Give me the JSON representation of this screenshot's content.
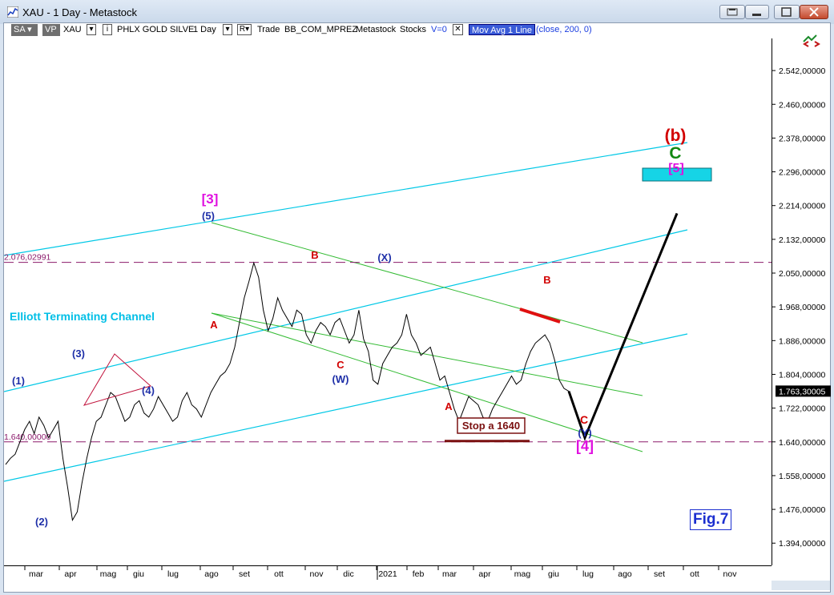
{
  "window": {
    "title": "XAU - 1 Day - Metastock"
  },
  "toolbar": {
    "sa": "SA",
    "vp": "VP",
    "symbol": "XAU",
    "name": "PHLX GOLD SILVE",
    "period": "1 Day",
    "r": "R",
    "trade": "Trade",
    "strategy": "BB_COM_MPREZ",
    "source": "Metastock",
    "stocks": "Stocks",
    "v": "V=0",
    "indicator": "Mov Avg 1 Line",
    "params": "(close,  200,  0)"
  },
  "colors": {
    "price": "#000000",
    "channel": "#00c8e6",
    "green_channel": "#33bb33",
    "wave_blue": "#1e2fa8",
    "wave_red": "#d20000",
    "wave_magenta": "#e010e0",
    "wave_green": "#118811",
    "hline": "#8b1a6b"
  },
  "chart_data": {
    "type": "line",
    "ylim": [
      1340,
      2620
    ],
    "yticks": [
      1394,
      1476,
      1558,
      1640,
      1722,
      1804,
      1886,
      1968,
      2050,
      2132,
      2214,
      2296,
      2378,
      2460,
      2542
    ],
    "ytick_labels": [
      "1.394,00000",
      "1.476,00000",
      "1.558,00000",
      "1.640,00000",
      "1.722,00000",
      "1.804,00000",
      "1.886,00000",
      "1.968,00000",
      "2.050,00000",
      "2.132,00000",
      "2.214,00000",
      "2.296,00000",
      "2.378,00000",
      "2.460,00000",
      "2.542,00000"
    ],
    "last_price_label": "1.763,30005",
    "xticks": [
      "mar",
      "apr",
      "mag",
      "giu",
      "lug",
      "ago",
      "set",
      "ott",
      "nov",
      "dic",
      "2021",
      "feb",
      "mar",
      "apr",
      "mag",
      "giu",
      "lug",
      "ago",
      "set",
      "ott",
      "nov"
    ],
    "series": [
      {
        "values": [
          1585,
          1600,
          1610,
          1640,
          1670,
          1690,
          1660,
          1700,
          1680,
          1650,
          1670,
          1690,
          1600,
          1530,
          1450,
          1470,
          1540,
          1600,
          1650,
          1690,
          1700,
          1730,
          1760,
          1750,
          1720,
          1690,
          1700,
          1730,
          1740,
          1710,
          1700,
          1720,
          1750,
          1730,
          1710,
          1690,
          1700,
          1740,
          1760,
          1730,
          1720,
          1700,
          1730,
          1760,
          1780,
          1800,
          1810,
          1830,
          1870,
          1930,
          1990,
          2030,
          2075,
          2040,
          1960,
          1910,
          1940,
          1990,
          1960,
          1940,
          1920,
          1960,
          1950,
          1900,
          1880,
          1910,
          1930,
          1920,
          1900,
          1930,
          1940,
          1910,
          1880,
          1900,
          1960,
          1890,
          1860,
          1790,
          1780,
          1830,
          1850,
          1870,
          1880,
          1900,
          1950,
          1900,
          1880,
          1850,
          1860,
          1870,
          1830,
          1790,
          1800,
          1760,
          1720,
          1690,
          1720,
          1750,
          1740,
          1730,
          1700,
          1690,
          1720,
          1740,
          1760,
          1780,
          1800,
          1780,
          1790,
          1830,
          1860,
          1880,
          1890,
          1900,
          1880,
          1840,
          1790,
          1770,
          1763
        ]
      }
    ],
    "projection": [
      1763,
      1650,
      2195
    ],
    "annotations": [
      {
        "text": "(1)",
        "color": "blue"
      },
      {
        "text": "(2)",
        "color": "blue"
      },
      {
        "text": "(3)",
        "color": "blue"
      },
      {
        "text": "(4)",
        "color": "blue"
      },
      {
        "text": "[3]",
        "color": "magenta"
      },
      {
        "text": "(5)",
        "color": "blue"
      },
      {
        "text": "A",
        "color": "red"
      },
      {
        "text": "B",
        "color": "red"
      },
      {
        "text": "C",
        "color": "red"
      },
      {
        "text": "(W)",
        "color": "blue"
      },
      {
        "text": "(X)",
        "color": "blue"
      },
      {
        "text": "A",
        "color": "red"
      },
      {
        "text": "B",
        "color": "red"
      },
      {
        "text": "C",
        "color": "red"
      },
      {
        "text": "(Y)",
        "color": "blue"
      },
      {
        "text": "[4]",
        "color": "magenta"
      },
      {
        "text": "(b)",
        "color": "red"
      },
      {
        "text": "C",
        "color": "green"
      },
      {
        "text": "[5]",
        "color": "magenta"
      }
    ],
    "hlines": [
      {
        "value": 2076.02991,
        "label": "2.076,02991"
      },
      {
        "value": 1640.0,
        "label": "1.640,00000"
      }
    ],
    "channel_label": "Elliott Terminating Channel",
    "stop_label": "Stop a 1640",
    "fig_label": "Fig.7"
  }
}
